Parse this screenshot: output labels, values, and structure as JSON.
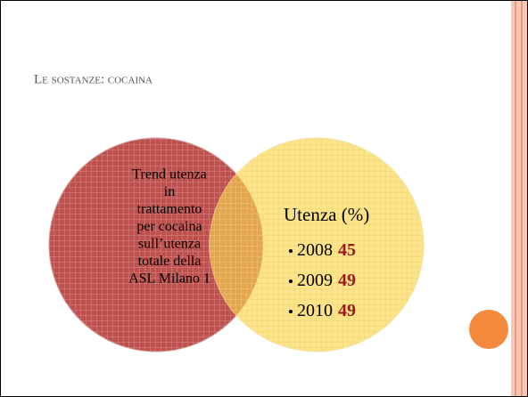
{
  "header": {
    "title": "Le sostanze: cocaina"
  },
  "left_circle": {
    "lines": [
      "Trend utenza",
      "in",
      "trattamento",
      "per cocaina",
      "sull’utenza",
      "totale della",
      "ASL Milano 1"
    ]
  },
  "right_circle": {
    "heading": "Utenza (%)",
    "items": [
      {
        "year": "2008",
        "value": 45
      },
      {
        "year": "2009",
        "value": 49
      },
      {
        "year": "2010",
        "value": 49
      }
    ]
  }
}
